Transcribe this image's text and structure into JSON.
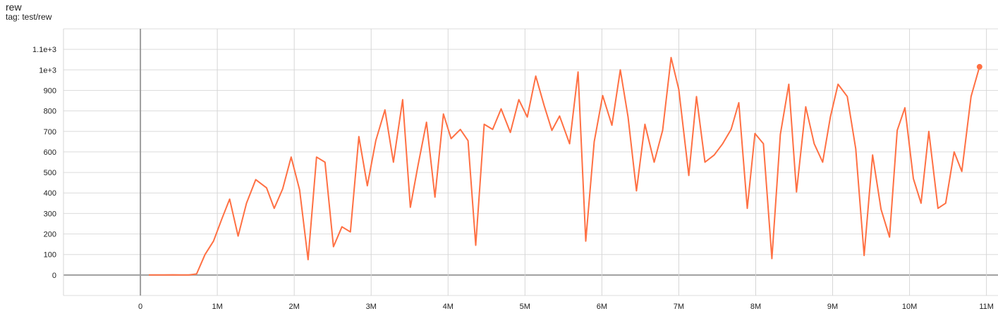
{
  "chart_data": {
    "type": "line",
    "title": "rew",
    "subtitle": "tag: test/rew",
    "xlabel": "",
    "ylabel": "",
    "xlim": [
      -1,
      11.15
    ],
    "ylim": [
      -100,
      1200
    ],
    "grid": true,
    "x_unit": "M",
    "x_ticks": [
      0,
      1,
      2,
      3,
      4,
      5,
      6,
      7,
      8,
      9,
      10,
      11
    ],
    "x_tick_labels": [
      "0",
      "1M",
      "2M",
      "3M",
      "4M",
      "5M",
      "6M",
      "7M",
      "8M",
      "9M",
      "10M",
      "11M"
    ],
    "y_ticks": [
      0,
      100,
      200,
      300,
      400,
      500,
      600,
      700,
      800,
      900,
      1000,
      1100
    ],
    "y_tick_labels": [
      "0",
      "100",
      "200",
      "300",
      "400",
      "500",
      "600",
      "700",
      "800",
      "900",
      "1e+3",
      "1.1e+3"
    ],
    "line_color": "#ff7043",
    "series": [
      {
        "x": [
          0.11,
          0.21,
          0.32,
          0.42,
          0.53,
          0.63,
          0.73,
          0.84,
          0.95,
          1.06,
          1.16,
          1.27,
          1.38,
          1.5,
          1.64,
          1.74,
          1.85,
          1.96,
          2.07,
          2.18,
          2.29,
          2.4,
          2.51,
          2.62,
          2.73,
          2.84,
          2.95,
          3.06,
          3.18,
          3.29,
          3.41,
          3.51,
          3.61,
          3.72,
          3.83,
          3.94,
          4.04,
          4.16,
          4.26,
          4.36,
          4.47,
          4.58,
          4.69,
          4.81,
          4.92,
          5.03,
          5.14,
          5.25,
          5.35,
          5.45,
          5.58,
          5.69,
          5.79,
          5.9,
          6.01,
          6.13,
          6.24,
          6.34,
          6.45,
          6.56,
          6.68,
          6.79,
          6.9,
          7.0,
          7.13,
          7.23,
          7.34,
          7.46,
          7.57,
          7.68,
          7.78,
          7.89,
          7.99,
          8.1,
          8.21,
          8.32,
          8.43,
          8.53,
          8.65,
          8.76,
          8.87,
          8.97,
          9.07,
          9.19,
          9.3,
          9.41,
          9.52,
          9.63,
          9.74,
          9.84,
          9.94,
          10.05,
          10.15,
          10.25,
          10.37,
          10.47,
          10.58,
          10.68,
          10.8,
          10.91
        ],
        "y": [
          0,
          0,
          0,
          1,
          0,
          0,
          5,
          100,
          165,
          275,
          370,
          190,
          350,
          465,
          425,
          325,
          420,
          575,
          415,
          75,
          575,
          550,
          138,
          235,
          210,
          675,
          435,
          655,
          805,
          550,
          855,
          330,
          535,
          745,
          380,
          785,
          665,
          710,
          655,
          145,
          735,
          710,
          810,
          695,
          855,
          770,
          970,
          825,
          705,
          775,
          640,
          990,
          165,
          650,
          875,
          730,
          1000,
          770,
          410,
          735,
          550,
          705,
          1060,
          905,
          485,
          870,
          550,
          585,
          640,
          710,
          840,
          325,
          690,
          640,
          80,
          685,
          930,
          405,
          820,
          640,
          550,
          770,
          930,
          870,
          615,
          95,
          585,
          320,
          185,
          705,
          815,
          470,
          350,
          700,
          325,
          350,
          600,
          505,
          870,
          1015
        ]
      }
    ]
  }
}
